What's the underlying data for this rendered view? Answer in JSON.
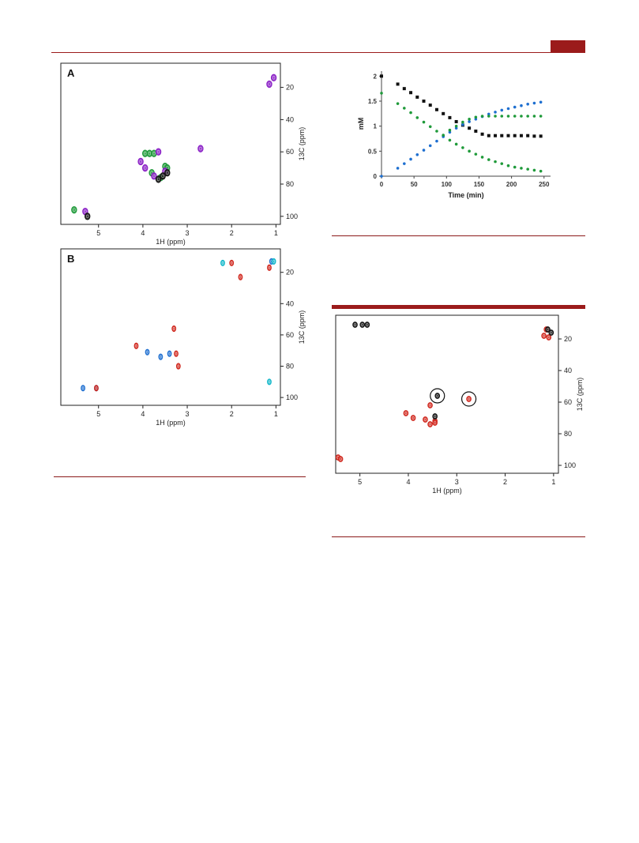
{
  "colors": {
    "accent": "#9b1b1b",
    "black": "#111111",
    "green": "#1f9a3a",
    "purple": "#8a1fc6",
    "blue": "#1e6fd0",
    "red": "#d0271d",
    "cyan": "#11b7c9"
  },
  "chart_data": [
    {
      "id": "panel-a",
      "type": "scatter",
      "panel_label": "A",
      "xlabel": "1H (ppm)",
      "ylabel": "13C (ppm)",
      "xlim": [
        5.85,
        0.9
      ],
      "ylim": [
        5,
        105
      ],
      "x_ticks": [
        5,
        4,
        3,
        2,
        1
      ],
      "y_ticks": [
        20,
        40,
        60,
        80,
        100
      ],
      "series": [
        {
          "color": "green",
          "points": [
            [
              5.55,
              96
            ],
            [
              3.95,
              61
            ],
            [
              3.85,
              61
            ],
            [
              3.75,
              61
            ],
            [
              3.5,
              69
            ],
            [
              3.45,
              70
            ],
            [
              3.8,
              73
            ],
            [
              3.6,
              76
            ]
          ]
        },
        {
          "color": "purple",
          "points": [
            [
              5.3,
              97
            ],
            [
              1.05,
              14
            ],
            [
              1.15,
              18
            ],
            [
              3.95,
              70
            ],
            [
              3.75,
              75
            ],
            [
              3.5,
              72
            ],
            [
              4.05,
              66
            ],
            [
              2.7,
              58
            ],
            [
              3.65,
              60
            ]
          ]
        },
        {
          "color": "black",
          "points": [
            [
              5.25,
              100
            ],
            [
              3.65,
              77
            ],
            [
              3.55,
              75
            ],
            [
              3.45,
              73
            ]
          ]
        }
      ]
    },
    {
      "id": "panel-b",
      "type": "scatter",
      "panel_label": "B",
      "xlabel": "1H (ppm)",
      "ylabel": "13C (ppm)",
      "xlim": [
        5.85,
        0.9
      ],
      "ylim": [
        5,
        105
      ],
      "x_ticks": [
        5,
        4,
        3,
        2,
        1
      ],
      "y_ticks": [
        20,
        40,
        60,
        80,
        100
      ],
      "series": [
        {
          "color": "blue",
          "points": [
            [
              5.35,
              94
            ],
            [
              5.05,
              94
            ],
            [
              3.9,
              71
            ],
            [
              3.6,
              74
            ],
            [
              3.4,
              72
            ],
            [
              1.1,
              13
            ]
          ]
        },
        {
          "color": "red",
          "points": [
            [
              4.15,
              67
            ],
            [
              3.3,
              56
            ],
            [
              3.25,
              72
            ],
            [
              3.2,
              80
            ],
            [
              2.0,
              14
            ],
            [
              1.8,
              23
            ],
            [
              1.15,
              17
            ],
            [
              5.05,
              94
            ]
          ]
        },
        {
          "color": "cyan",
          "points": [
            [
              2.2,
              14
            ],
            [
              1.15,
              90
            ],
            [
              1.05,
              13
            ]
          ]
        }
      ]
    },
    {
      "id": "time-course",
      "type": "scatter",
      "xlabel": "Time (min)",
      "ylabel": "mM",
      "xlim": [
        0,
        260
      ],
      "ylim": [
        0,
        2.1
      ],
      "x_ticks": [
        0,
        50,
        100,
        150,
        200,
        250
      ],
      "y_ticks": [
        0,
        0.5,
        1,
        1.5,
        2
      ],
      "series": [
        {
          "color": "black",
          "x": [
            0,
            25,
            35,
            45,
            55,
            65,
            75,
            85,
            95,
            105,
            115,
            125,
            135,
            145,
            155,
            165,
            175,
            185,
            195,
            205,
            215,
            225,
            235,
            245
          ],
          "y": [
            2.0,
            1.84,
            1.75,
            1.67,
            1.58,
            1.5,
            1.42,
            1.33,
            1.25,
            1.17,
            1.09,
            1.02,
            0.96,
            0.9,
            0.84,
            0.81,
            0.81,
            0.81,
            0.81,
            0.81,
            0.81,
            0.81,
            0.8,
            0.8
          ]
        },
        {
          "color": "green",
          "x": [
            0,
            25,
            35,
            45,
            55,
            65,
            75,
            85,
            95,
            105,
            115,
            125,
            135,
            145,
            155,
            165,
            175,
            185,
            195,
            205,
            215,
            225,
            235,
            245
          ],
          "y": [
            1.66,
            1.45,
            1.36,
            1.27,
            1.17,
            1.08,
            0.99,
            0.9,
            0.81,
            0.72,
            0.64,
            0.57,
            0.5,
            0.44,
            0.38,
            0.33,
            0.29,
            0.25,
            0.21,
            0.18,
            0.16,
            0.14,
            0.12,
            0.1
          ]
        },
        {
          "color": "blue",
          "x": [
            0,
            25,
            35,
            45,
            55,
            65,
            75,
            85,
            95,
            105,
            115,
            125,
            135,
            145,
            155,
            165,
            175,
            185,
            195,
            205,
            215,
            225,
            235,
            245
          ],
          "y": [
            0.0,
            0.16,
            0.25,
            0.34,
            0.43,
            0.52,
            0.61,
            0.7,
            0.79,
            0.88,
            0.96,
            1.03,
            1.09,
            1.14,
            1.19,
            1.24,
            1.28,
            1.32,
            1.35,
            1.38,
            1.41,
            1.44,
            1.46,
            1.48
          ]
        },
        {
          "color": "green",
          "x": [
            95,
            105,
            115,
            125,
            135,
            145,
            155,
            165,
            175,
            185,
            195,
            205,
            215,
            225,
            235,
            245
          ],
          "y": [
            0.82,
            0.92,
            1.0,
            1.08,
            1.14,
            1.18,
            1.2,
            1.2,
            1.2,
            1.2,
            1.2,
            1.2,
            1.2,
            1.2,
            1.2,
            1.2
          ]
        }
      ]
    },
    {
      "id": "panel-c",
      "type": "scatter",
      "xlabel": "1H (ppm)",
      "ylabel": "13C (ppm)",
      "xlim": [
        5.5,
        0.9
      ],
      "ylim": [
        5,
        105
      ],
      "x_ticks": [
        5,
        4,
        3,
        2,
        1
      ],
      "y_ticks": [
        20,
        40,
        60,
        80,
        100
      ],
      "circled": [
        [
          3.4,
          56
        ],
        [
          2.75,
          58
        ]
      ],
      "series": [
        {
          "color": "red",
          "points": [
            [
              5.45,
              95
            ],
            [
              5.4,
              96
            ],
            [
              4.05,
              67
            ],
            [
              3.9,
              70
            ],
            [
              3.65,
              71
            ],
            [
              3.55,
              74
            ],
            [
              3.45,
              72
            ],
            [
              3.45,
              73
            ],
            [
              3.55,
              62
            ],
            [
              2.75,
              58
            ],
            [
              1.15,
              14
            ],
            [
              1.2,
              18
            ],
            [
              1.1,
              19
            ]
          ]
        },
        {
          "color": "black",
          "points": [
            [
              3.4,
              56
            ],
            [
              3.45,
              69
            ],
            [
              1.12,
              14
            ],
            [
              1.05,
              16
            ],
            [
              4.95,
              11
            ],
            [
              4.85,
              11
            ],
            [
              5.1,
              11
            ]
          ]
        }
      ]
    }
  ]
}
